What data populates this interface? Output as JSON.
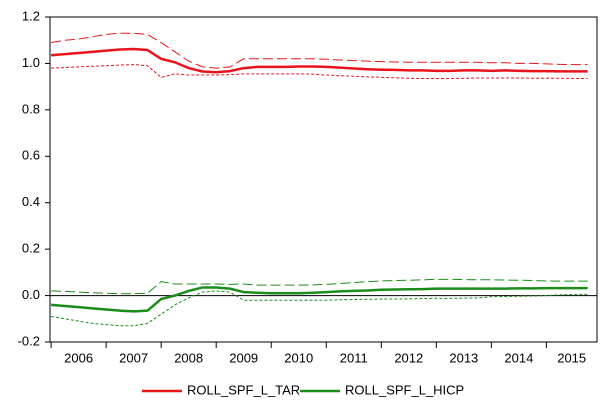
{
  "chart_data": {
    "type": "line",
    "x": [
      2006,
      2006.25,
      2006.5,
      2006.75,
      2007,
      2007.25,
      2007.5,
      2007.75,
      2008,
      2008.25,
      2008.5,
      2008.75,
      2009,
      2009.25,
      2009.5,
      2009.75,
      2010,
      2010.25,
      2010.5,
      2010.75,
      2011,
      2011.25,
      2011.5,
      2011.75,
      2012,
      2012.25,
      2012.5,
      2012.75,
      2013,
      2013.25,
      2013.5,
      2013.75,
      2014,
      2014.25,
      2014.5,
      2014.75,
      2015,
      2015.25,
      2015.5,
      2015.75
    ],
    "series": [
      {
        "name": "ROLL_SPF_L_TAR",
        "color": "#e8141b",
        "values": [
          1.035,
          1.04,
          1.045,
          1.05,
          1.055,
          1.06,
          1.062,
          1.058,
          1.02,
          1.005,
          0.98,
          0.965,
          0.962,
          0.967,
          0.98,
          0.985,
          0.985,
          0.985,
          0.987,
          0.987,
          0.985,
          0.982,
          0.978,
          0.975,
          0.973,
          0.972,
          0.97,
          0.97,
          0.968,
          0.968,
          0.97,
          0.97,
          0.968,
          0.97,
          0.968,
          0.967,
          0.967,
          0.966,
          0.966,
          0.966
        ],
        "upper": [
          1.09,
          1.1,
          1.105,
          1.115,
          1.125,
          1.13,
          1.13,
          1.125,
          1.09,
          1.05,
          1.01,
          0.985,
          0.98,
          0.985,
          1.02,
          1.02,
          1.02,
          1.02,
          1.02,
          1.02,
          1.018,
          1.015,
          1.012,
          1.01,
          1.008,
          1.006,
          1.005,
          1.005,
          1.005,
          1.005,
          1.005,
          1.005,
          1.003,
          1.003,
          1.0,
          1.0,
          0.998,
          0.996,
          0.995,
          0.995
        ],
        "lower": [
          0.98,
          0.982,
          0.985,
          0.988,
          0.99,
          0.993,
          0.995,
          0.99,
          0.94,
          0.955,
          0.95,
          0.95,
          0.95,
          0.952,
          0.955,
          0.955,
          0.955,
          0.955,
          0.955,
          0.954,
          0.95,
          0.947,
          0.945,
          0.942,
          0.94,
          0.938,
          0.936,
          0.935,
          0.935,
          0.935,
          0.936,
          0.937,
          0.937,
          0.937,
          0.937,
          0.936,
          0.936,
          0.936,
          0.935,
          0.935
        ]
      },
      {
        "name": "ROLL_SPF_L_HICP",
        "color": "#1a8c1a",
        "values": [
          -0.04,
          -0.045,
          -0.05,
          -0.055,
          -0.06,
          -0.065,
          -0.068,
          -0.065,
          -0.015,
          0.0,
          0.02,
          0.035,
          0.035,
          0.03,
          0.015,
          0.012,
          0.01,
          0.01,
          0.01,
          0.012,
          0.015,
          0.018,
          0.02,
          0.022,
          0.025,
          0.026,
          0.027,
          0.028,
          0.03,
          0.03,
          0.03,
          0.03,
          0.03,
          0.03,
          0.031,
          0.031,
          0.032,
          0.032,
          0.032,
          0.032
        ],
        "upper": [
          0.02,
          0.018,
          0.015,
          0.012,
          0.01,
          0.008,
          0.008,
          0.01,
          0.06,
          0.05,
          0.05,
          0.05,
          0.05,
          0.048,
          0.05,
          0.045,
          0.045,
          0.045,
          0.045,
          0.046,
          0.048,
          0.052,
          0.056,
          0.06,
          0.063,
          0.065,
          0.066,
          0.068,
          0.07,
          0.07,
          0.069,
          0.068,
          0.068,
          0.067,
          0.066,
          0.065,
          0.063,
          0.062,
          0.062,
          0.062
        ],
        "lower": [
          -0.09,
          -0.1,
          -0.11,
          -0.12,
          -0.125,
          -0.13,
          -0.13,
          -0.12,
          -0.08,
          -0.04,
          -0.01,
          0.015,
          0.02,
          0.015,
          -0.02,
          -0.02,
          -0.02,
          -0.02,
          -0.02,
          -0.02,
          -0.02,
          -0.018,
          -0.017,
          -0.016,
          -0.015,
          -0.015,
          -0.014,
          -0.013,
          -0.012,
          -0.012,
          -0.011,
          -0.01,
          -0.005,
          -0.004,
          -0.003,
          -0.002,
          0.0,
          0.003,
          0.005,
          0.005
        ]
      }
    ],
    "xlim": [
      2005.98,
      2015.92
    ],
    "xticks": [
      2006,
      2007,
      2008,
      2009,
      2010,
      2011,
      2012,
      2013,
      2014,
      2015
    ],
    "ylim": [
      -0.2,
      1.2
    ],
    "yticks": [
      -0.2,
      {
        "value": 0,
        "label": "0.0"
      },
      0.2,
      0.4,
      0.6,
      0.8,
      {
        "value": 1,
        "label": "1.0"
      },
      1.2
    ],
    "zero_line": true,
    "legend": "bottom"
  }
}
